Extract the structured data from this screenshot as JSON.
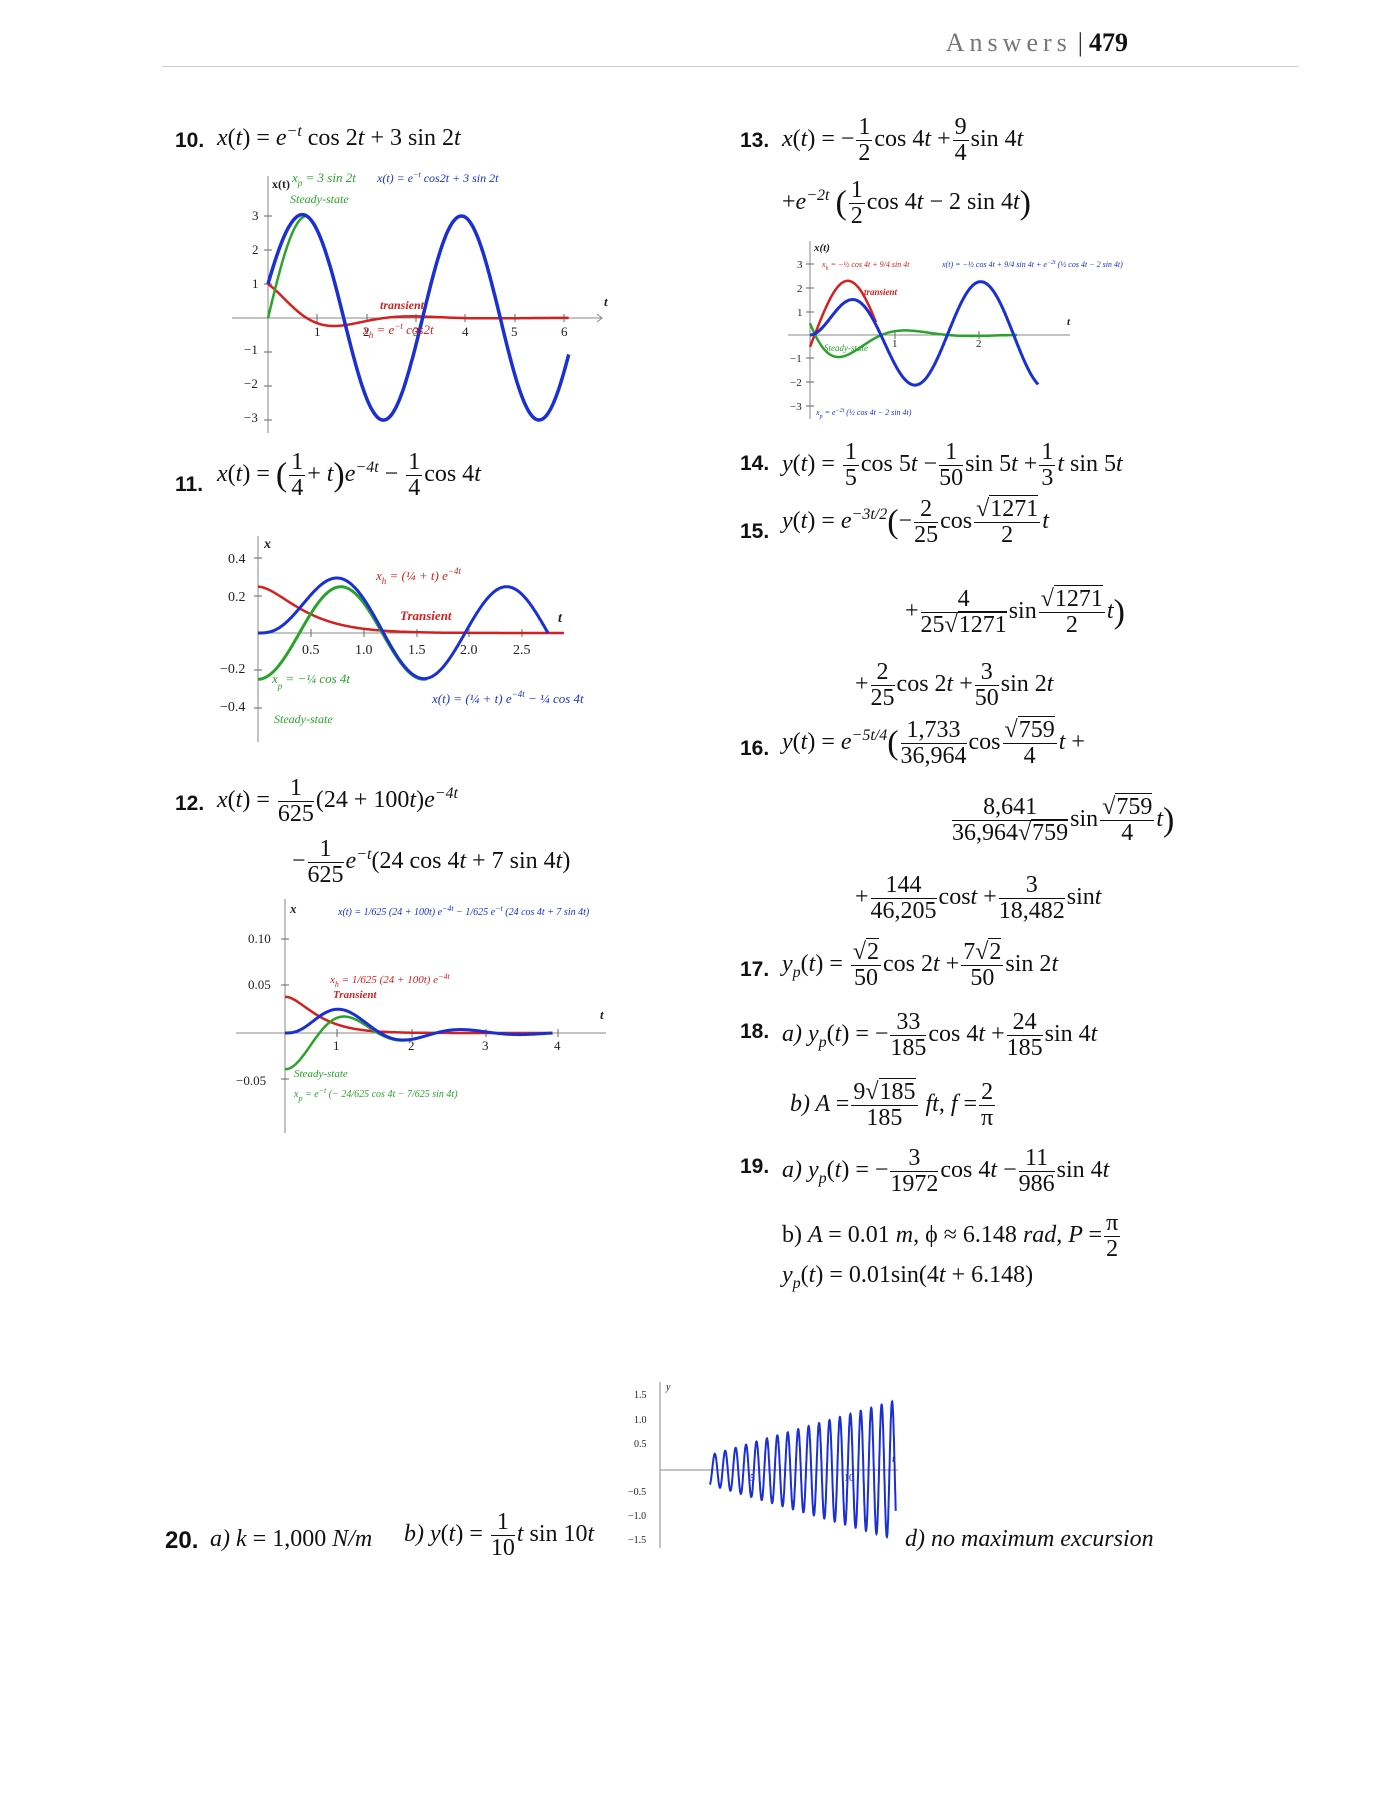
{
  "header": {
    "section": "Answers",
    "separator": "|",
    "page": "479"
  },
  "answers": {
    "a10": {
      "num": "10.",
      "eq": "x(t) = e^(−t) cos 2t + 3 sin 2t"
    },
    "a11": {
      "num": "11.",
      "eq": "x(t) = (1/4 + t) e^(−4t) − (1/4) cos 4t"
    },
    "a12": {
      "num": "12.",
      "line1": "x(t) = 1/625 (24 + 100t) e^(−4t)",
      "line2": "− 1/625 e^(−t) (24 cos 4t + 7 sin 4t)"
    },
    "a13": {
      "num": "13.",
      "line1": "x(t) = −1/2 cos 4t + 9/4 sin 4t",
      "line2": "+e^(−2t) (1/2 cos 4t − 2 sin 4t)"
    },
    "a14": {
      "num": "14.",
      "eq": "y(t) = 1/5 cos 5t − 1/50 sin 5t + 1/3 t sin 5t"
    },
    "a15": {
      "num": "15."
    },
    "a16": {
      "num": "16."
    },
    "a17": {
      "num": "17."
    },
    "a18": {
      "num": "18."
    },
    "a19": {
      "num": "19.",
      "b": "b) A = 0.01 m, ϕ ≈ 6.148 rad, P = π/2",
      "yp": "y_p(t) = 0.01 sin(4t + 6.148)"
    },
    "a20": {
      "num": "20.",
      "a": "a) k = 1,000 N/m",
      "d": "d) no maximum excursion"
    }
  },
  "chart_data": [
    {
      "type": "line",
      "id": "g10",
      "ylabel": "x(t)",
      "xlabel": "t",
      "x_ticks": [
        "1",
        "2",
        "3",
        "4",
        "5",
        "6"
      ],
      "y_ticks": [
        "3",
        "2",
        "1",
        "−1",
        "−2",
        "−3"
      ],
      "xlim": [
        0,
        6.8
      ],
      "ylim": [
        -3.3,
        3.4
      ],
      "annotations": [
        "x_p = 3 sin 2t",
        "Steady-state",
        "x(t) = e^(−t) cos 2t + 3 sin 2t",
        "transient",
        "x_h = e^(−t) cos 2t"
      ],
      "series": [
        {
          "name": "x(t) = e^(−t) cos 2t + 3 sin 2t",
          "color": "#1a2fd4"
        },
        {
          "name": "x_p = 3 sin 2t",
          "color": "#2ba32b"
        },
        {
          "name": "x_h = e^(−t) cos 2t",
          "color": "#d62020"
        }
      ]
    },
    {
      "type": "line",
      "id": "g11",
      "ylabel": "x",
      "xlabel": "t",
      "x_ticks": [
        "0.5",
        "1.0",
        "1.5",
        "2.0",
        "2.5"
      ],
      "y_ticks": [
        "0.4",
        "0.2",
        "−0.2",
        "−0.4"
      ],
      "xlim": [
        0,
        3.0
      ],
      "ylim": [
        -0.5,
        0.5
      ],
      "annotations": [
        "x_h = (1/4 + t) e^(−4t)",
        "Transient",
        "x_p = −1/4 cos 4t",
        "Steady-state",
        "x(t) = (1/4 + t) e^(−4t) − 1/4 cos 4t"
      ],
      "series": [
        {
          "name": "x(t)",
          "color": "#1a2fd4"
        },
        {
          "name": "x_p",
          "color": "#2ba32b"
        },
        {
          "name": "x_h",
          "color": "#d62020"
        }
      ]
    },
    {
      "type": "line",
      "id": "g12",
      "ylabel": "x",
      "xlabel": "t",
      "x_ticks": [
        "1",
        "2",
        "3",
        "4"
      ],
      "y_ticks": [
        "0.10",
        "0.05",
        "−0.05"
      ],
      "xlim": [
        0,
        5.4
      ],
      "ylim": [
        -0.08,
        0.13
      ],
      "annotations": [
        "x(t) = 1/625 (24 + 100t) e^(−4t) − 1/625 e^(−t) (24 cos 4t + 7 sin 4t)",
        "x_h = 1/625 (24 + 100t) e^(−4t)",
        "Transient",
        "Steady-state",
        "x_p = e^(−t) (−24/625 cos 4t − 7/625 sin 4t)"
      ],
      "series": [
        {
          "name": "x(t)",
          "color": "#1a2fd4"
        },
        {
          "name": "x_h",
          "color": "#d62020"
        },
        {
          "name": "x_p",
          "color": "#2ba32b"
        }
      ]
    },
    {
      "type": "line",
      "id": "g13",
      "ylabel": "x(t)",
      "xlabel": "t",
      "x_ticks": [
        "1",
        "2"
      ],
      "y_ticks": [
        "3",
        "2",
        "1",
        "−1",
        "−2",
        "−3"
      ],
      "xlim": [
        0,
        2.6
      ],
      "ylim": [
        -3.2,
        3.4
      ],
      "annotations": [
        "x_h = −1/2 cos 4t + 9/4 sin 4t",
        "x(t) = −1/2 cos 4t + 9/4 sin 4t + e^(−2t) (1/2 cos 4t − 2 sin 4t)",
        "transient",
        "Steady-state",
        "x_p = e^(−2t) (1/2 cos 4t − 2 sin 4t)"
      ],
      "series": [
        {
          "name": "x(t)",
          "color": "#1a2fd4"
        },
        {
          "name": "transient",
          "color": "#d62020"
        },
        {
          "name": "steady-state",
          "color": "#2ba32b"
        }
      ]
    },
    {
      "type": "line",
      "id": "g20",
      "ylabel": "y",
      "xlabel": "t",
      "x_ticks": [
        "5",
        "10"
      ],
      "y_ticks": [
        "1.5",
        "1.0",
        "0.5",
        "−0.5",
        "−1.0",
        "−1.5"
      ],
      "xlim": [
        0,
        14.5
      ],
      "ylim": [
        -1.5,
        1.5
      ],
      "series": [
        {
          "name": "y(t) = 1/10 t sin 10t",
          "color": "#1a2fd4"
        }
      ]
    }
  ]
}
